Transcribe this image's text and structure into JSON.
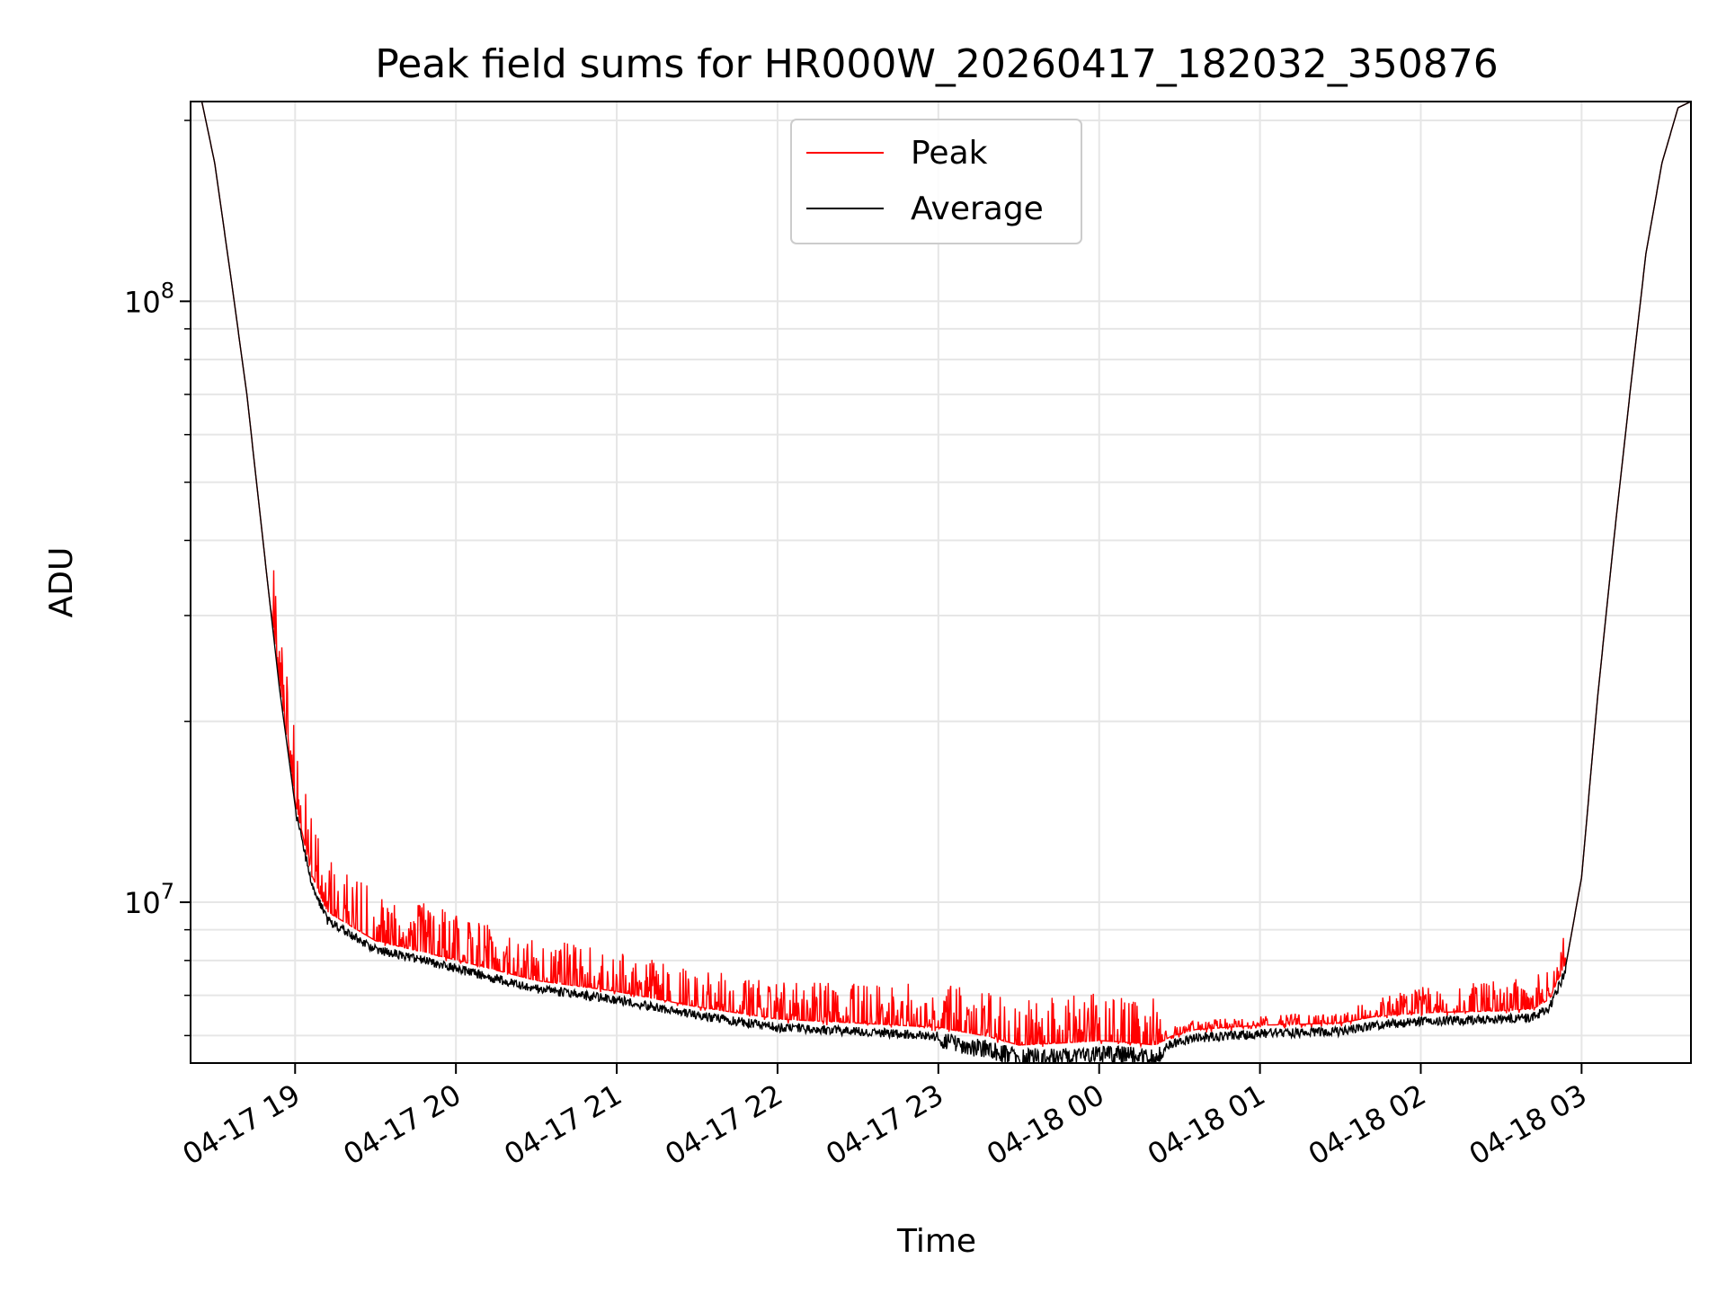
{
  "chart_data": {
    "type": "line",
    "title": "Peak field sums for HR000W_20260417_182032_350876",
    "xlabel": "Time",
    "ylabel": "ADU",
    "yscale": "log",
    "ylim": [
      5400000,
      215000000
    ],
    "xlim_hours": [
      18.35,
      27.68
    ],
    "x_unit": "hours since 2026-04-17 00:00",
    "grid": true,
    "legend_position": "upper center",
    "x_ticks": [
      {
        "hour": 19,
        "label": "04-17 19"
      },
      {
        "hour": 20,
        "label": "04-17 20"
      },
      {
        "hour": 21,
        "label": "04-17 21"
      },
      {
        "hour": 22,
        "label": "04-17 22"
      },
      {
        "hour": 23,
        "label": "04-17 23"
      },
      {
        "hour": 24,
        "label": "04-18 00"
      },
      {
        "hour": 25,
        "label": "04-18 01"
      },
      {
        "hour": 26,
        "label": "04-18 02"
      },
      {
        "hour": 27,
        "label": "04-18 03"
      }
    ],
    "y_major_ticks": [
      {
        "value": 10000000,
        "base": "10",
        "exp": "7"
      },
      {
        "value": 100000000,
        "base": "10",
        "exp": "8"
      }
    ],
    "y_minor_ticks": [
      6000000,
      7000000,
      8000000,
      9000000,
      20000000,
      30000000,
      40000000,
      50000000,
      60000000,
      70000000,
      80000000,
      90000000,
      200000000
    ],
    "series": [
      {
        "name": "Peak",
        "color": "#ff0000",
        "note": "same baseline as Average with frequent upward spikes; spike heights decrease from ~15% early in night to ~5% after 00:20",
        "spike_profile": {
          "x": [
            18.9,
            19.2,
            20.0,
            21.0,
            22.0,
            23.3,
            24.35,
            24.4,
            25.5,
            26.0,
            26.8
          ],
          "rel_height": [
            0.35,
            0.24,
            0.22,
            0.18,
            0.17,
            0.22,
            0.22,
            0.05,
            0.06,
            0.12,
            0.15
          ]
        }
      },
      {
        "name": "Average",
        "color": "#000000",
        "x": [
          18.35,
          18.42,
          18.5,
          18.6,
          18.7,
          18.8,
          18.9,
          19.0,
          19.1,
          19.2,
          19.5,
          20.0,
          20.5,
          21.0,
          21.5,
          22.0,
          22.5,
          23.0,
          23.3,
          23.5,
          23.8,
          24.0,
          24.2,
          24.35,
          24.45,
          24.6,
          25.0,
          25.5,
          25.7,
          26.0,
          26.5,
          26.7,
          26.8,
          26.9,
          27.0,
          27.1,
          27.2,
          27.3,
          27.4,
          27.5,
          27.6,
          27.68
        ],
        "y": [
          215000000,
          215000000,
          170000000,
          110000000,
          70000000,
          40000000,
          23000000,
          14500000,
          11000000,
          9500000,
          8500000,
          7900000,
          7300000,
          7000000,
          6600000,
          6300000,
          6200000,
          6100000,
          5900000,
          5700000,
          5750000,
          5800000,
          5750000,
          5700000,
          5900000,
          6050000,
          6150000,
          6200000,
          6350000,
          6450000,
          6500000,
          6550000,
          6800000,
          7800000,
          11000000,
          22000000,
          40000000,
          70000000,
          120000000,
          170000000,
          210000000,
          215000000
        ]
      }
    ]
  }
}
